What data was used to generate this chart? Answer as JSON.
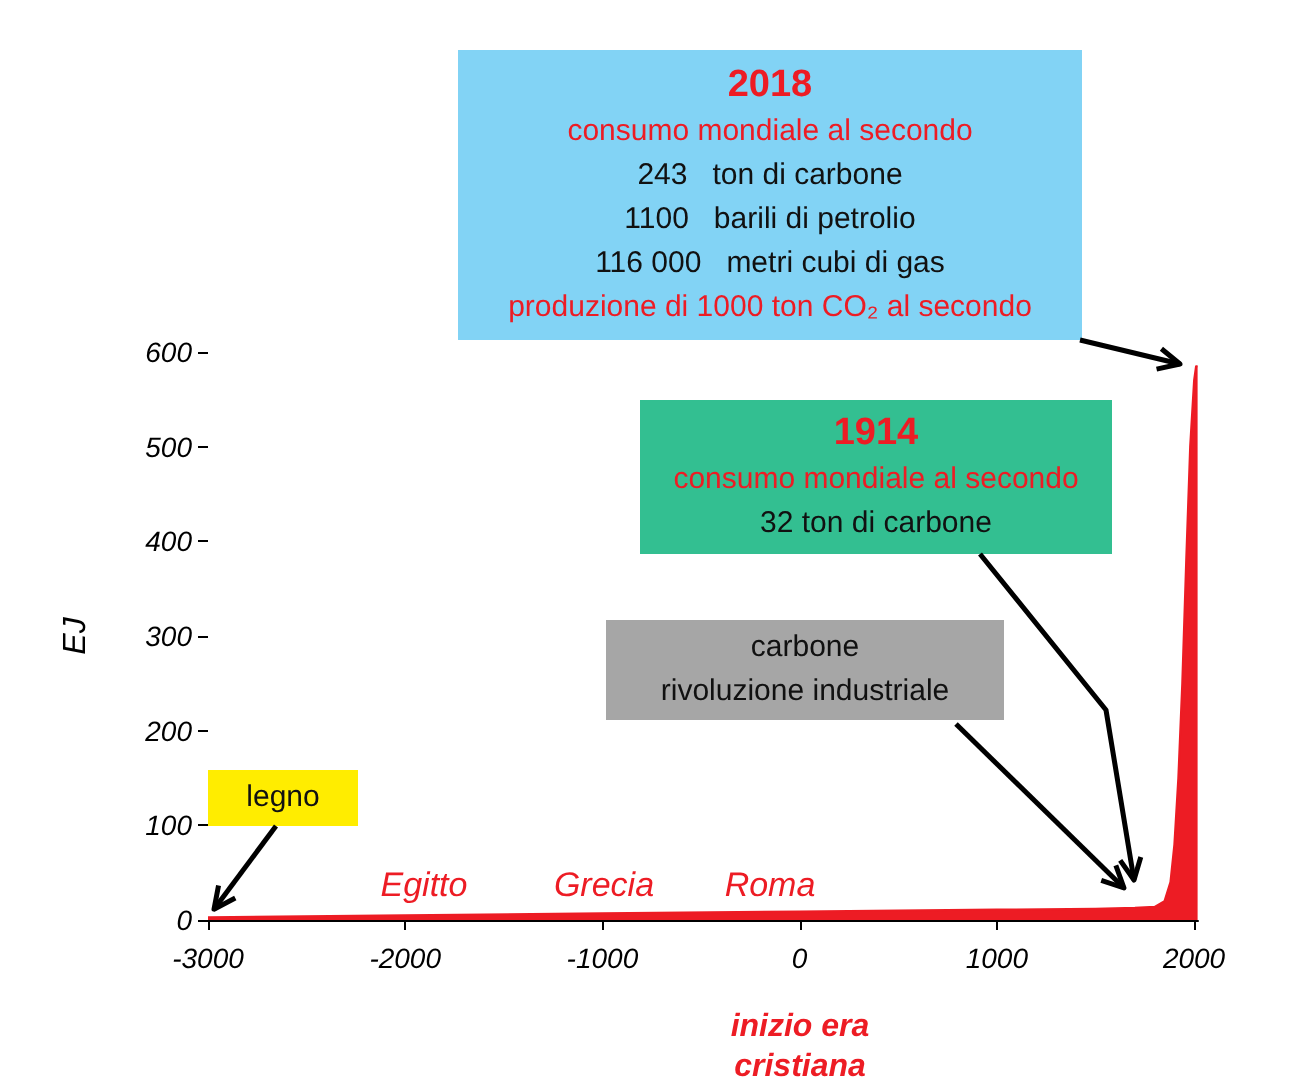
{
  "chart_data": {
    "type": "area",
    "ylabel": "EJ",
    "x": [
      -3000,
      -2000,
      -1000,
      0,
      1000,
      1500,
      1700,
      1800,
      1850,
      1880,
      1900,
      1920,
      1940,
      1960,
      1980,
      2000,
      2010,
      2018
    ],
    "values": [
      3,
      5,
      7,
      9,
      11,
      12,
      13,
      14,
      20,
      40,
      80,
      150,
      250,
      380,
      500,
      570,
      585,
      585
    ],
    "color": "#ed1c24",
    "xlim": [
      -3000,
      2020
    ],
    "xticks": [
      -3000,
      -2000,
      -1000,
      0,
      1000,
      2000
    ],
    "ylim": [
      0,
      600
    ],
    "yticks": [
      0,
      100,
      200,
      300,
      400,
      500,
      600
    ],
    "marker": "none",
    "annotations": [
      "2018\nconsumo mondiale al secondo\n243   ton di carbone\n1100   barili di petrolio\n116 000   metri cubi di gas\nproduzione di 1000 ton CO₂ al secondo",
      "1914\nconsumo mondiale al secondo\n32 ton di carbone",
      "carbone\nrivoluzione industriale",
      {
        "text": "legno",
        "x": -3000,
        "y": 3
      },
      "Egitto",
      "Grecia",
      "Roma",
      "inizio era cristiana"
    ]
  }
}
